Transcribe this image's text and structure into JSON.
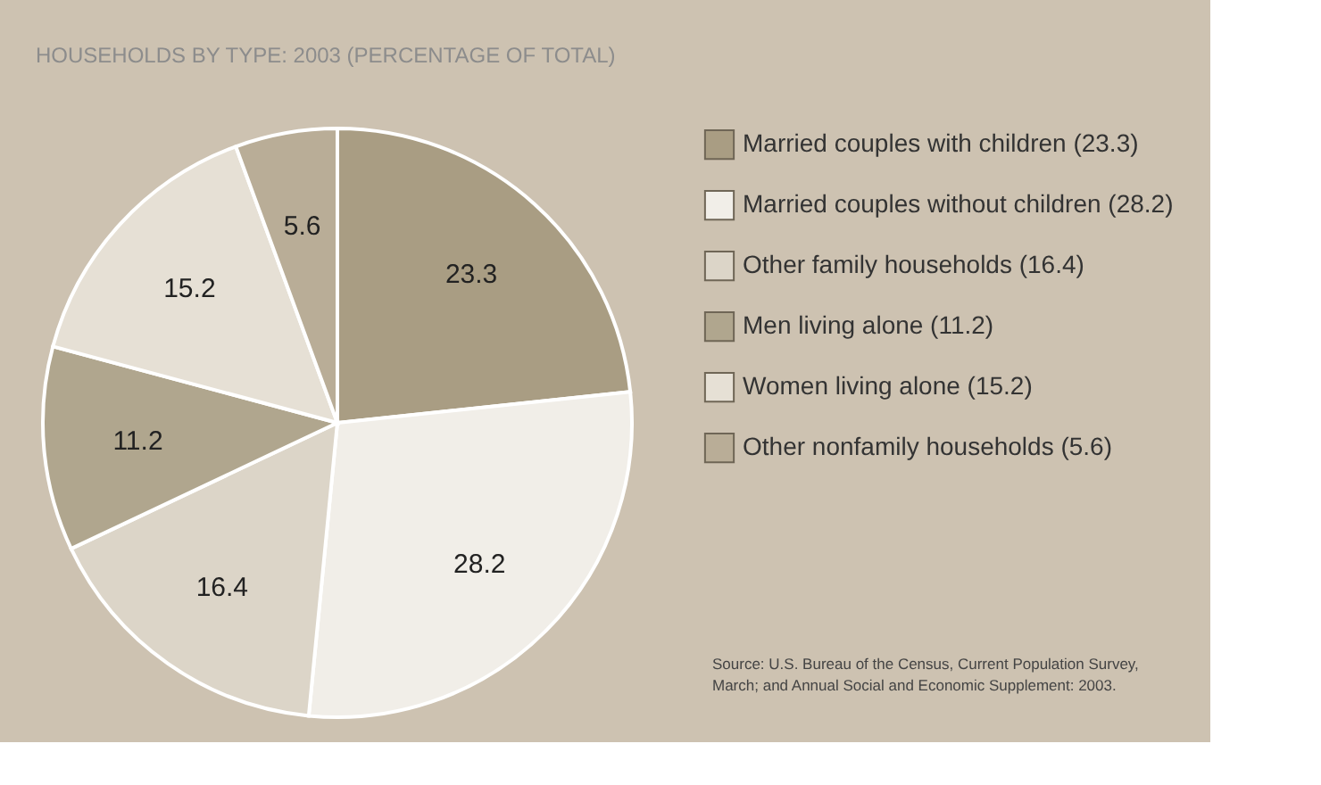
{
  "chart_data": {
    "type": "pie",
    "title": "HOUSEHOLDS BY TYPE: 2003 (PERCENTAGE OF TOTAL)",
    "categories": [
      "Married couples with children (23.3)",
      "Married couples without children (28.2)",
      "Other family households (16.4)",
      "Men living alone (11.2)",
      "Women living alone (15.2)",
      "Other nonfamily households (5.6)"
    ],
    "values": [
      23.3,
      28.2,
      16.4,
      11.2,
      15.2,
      5.6
    ],
    "colors": [
      "#a99d83",
      "#f1eee8",
      "#dcd5c8",
      "#b0a68e",
      "#e6e0d5",
      "#b9ad97"
    ],
    "data_labels": true,
    "legend": "right",
    "annotations": [
      "Source: U.S. Bureau of the Census, Current Population Survey,",
      "March; and Annual Social and Economic Supplement: 2003."
    ]
  }
}
